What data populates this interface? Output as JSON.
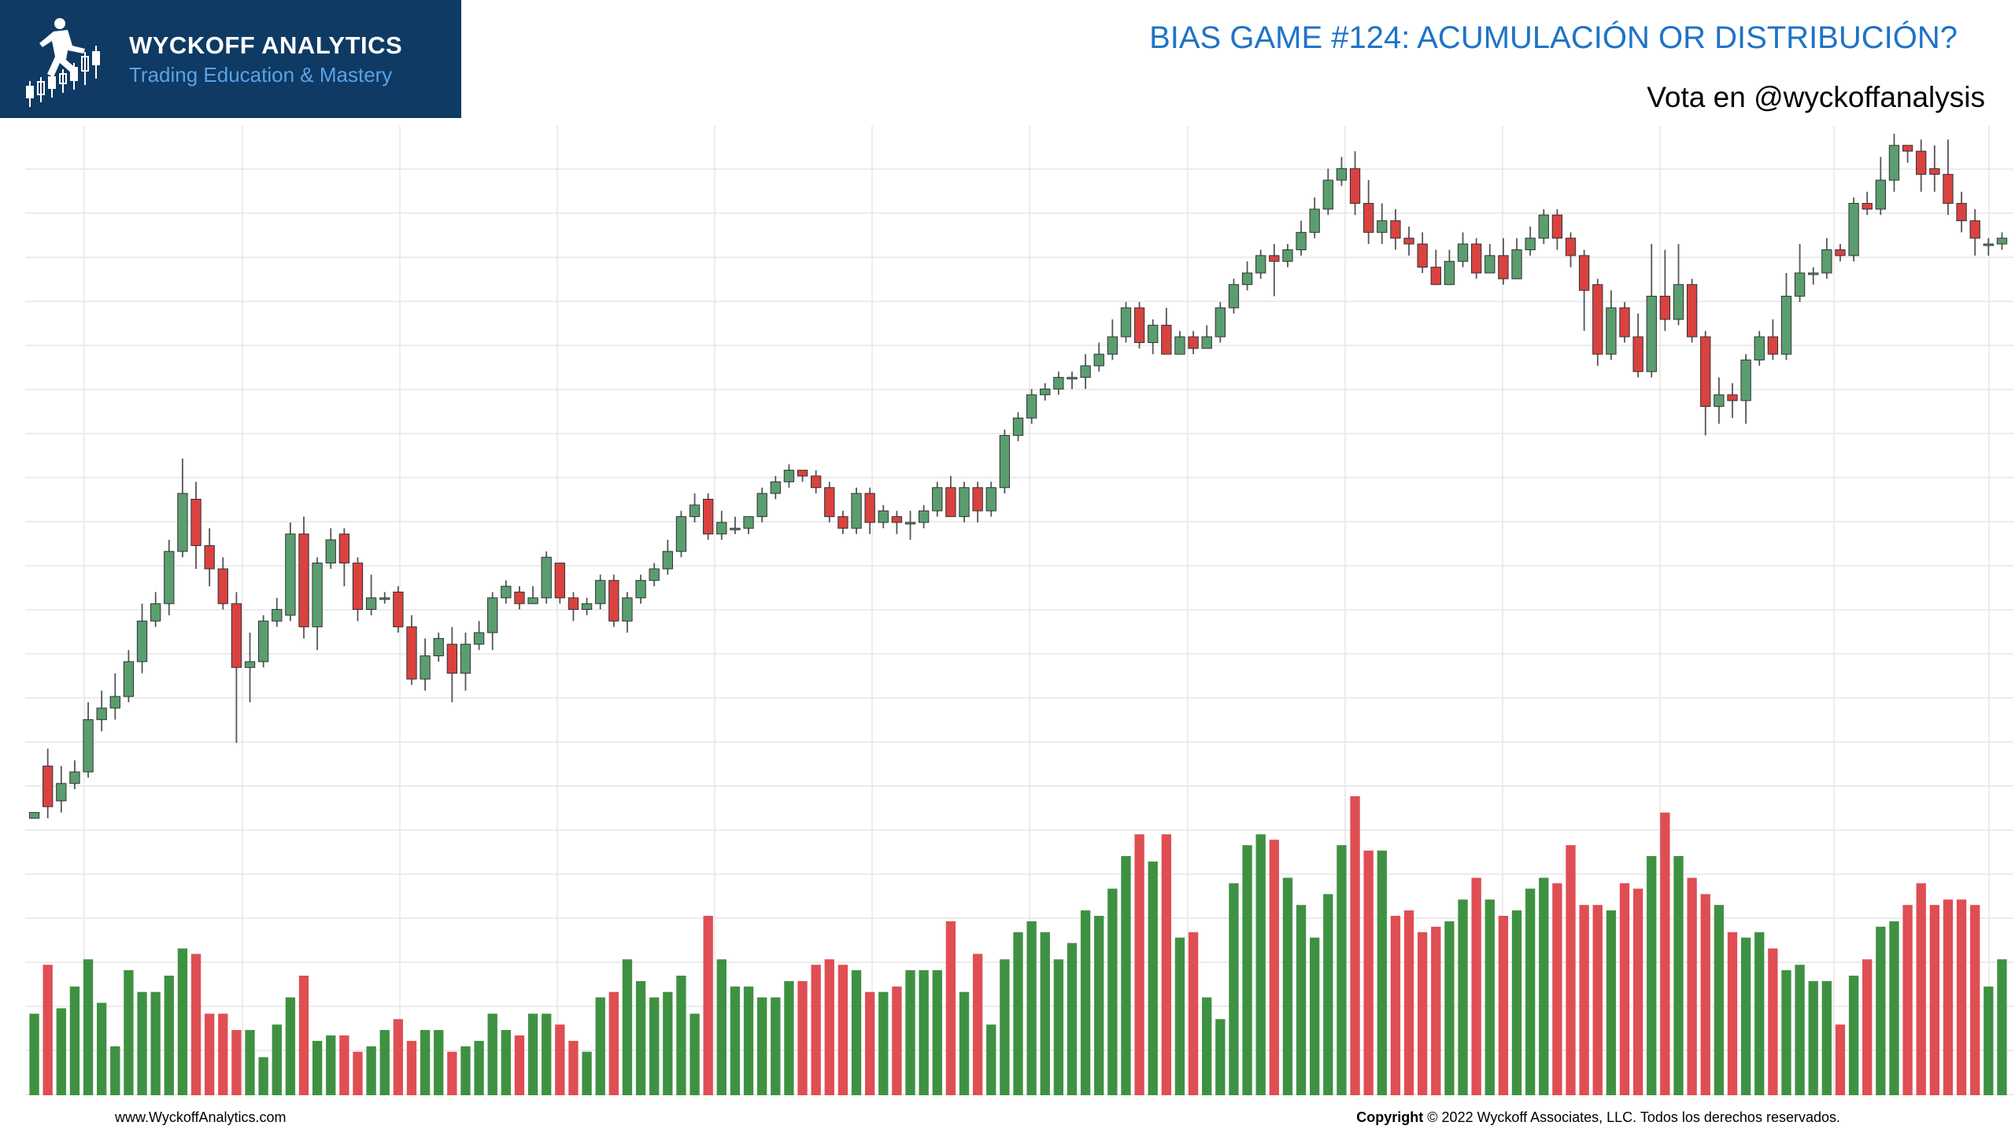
{
  "brand": {
    "name": "WYCKOFF ANALYTICS",
    "tagline": "Trading Education & Mastery"
  },
  "header": {
    "title": "BIAS GAME #124: ACUMULACIÓN OR DISTRIBUCIÓN?",
    "subtitle": "Vota en @wyckoffanalysis"
  },
  "footer": {
    "website": "www.WyckoffAnalytics.com",
    "copyright_label": "Copyright",
    "copyright_text": "© 2022 Wyckoff Associates, LLC. Todos los derechos reservados."
  },
  "colors": {
    "bull": "#5a9e6f",
    "bear": "#d9423f",
    "vol_bull": "#3f9142",
    "vol_bear": "#df4e53",
    "grid": "#e6e6e6",
    "brand_bg": "#0e3a63",
    "title": "#1f73c6"
  },
  "chart_data": {
    "type": "candlestick",
    "ylim": [
      0,
      100
    ],
    "volume_ylim": [
      0,
      100
    ],
    "grid": true,
    "bars": [
      [
        0,
        1,
        0,
        1,
        15
      ],
      [
        9,
        2,
        12,
        0,
        24
      ],
      [
        3,
        6,
        9,
        1,
        16
      ],
      [
        6,
        8,
        10,
        5,
        20
      ],
      [
        8,
        17,
        20,
        7,
        25
      ],
      [
        17,
        19,
        22,
        15,
        17
      ],
      [
        19,
        21,
        25,
        17,
        9
      ],
      [
        21,
        27,
        29,
        20,
        23
      ],
      [
        27,
        34,
        37,
        25,
        19
      ],
      [
        34,
        37,
        39,
        33,
        19
      ],
      [
        37,
        46,
        48,
        35,
        22
      ],
      [
        46,
        56,
        62,
        45,
        27
      ],
      [
        55,
        47,
        58,
        43,
        26
      ],
      [
        47,
        43,
        50,
        40,
        15
      ],
      [
        43,
        37,
        45,
        36,
        15
      ],
      [
        37,
        26,
        39,
        13,
        12
      ],
      [
        26,
        27,
        32,
        20,
        12
      ],
      [
        27,
        34,
        35,
        26,
        7
      ],
      [
        34,
        36,
        38,
        33,
        13
      ],
      [
        35,
        49,
        51,
        34,
        18
      ],
      [
        49,
        33,
        52,
        31,
        22
      ],
      [
        33,
        44,
        45,
        29,
        10
      ],
      [
        44,
        48,
        50,
        43,
        11
      ],
      [
        49,
        44,
        50,
        40,
        11
      ],
      [
        44,
        36,
        45,
        34,
        8
      ],
      [
        36,
        38,
        42,
        35,
        9
      ],
      [
        38,
        38,
        39,
        37,
        12
      ],
      [
        39,
        33,
        40,
        32,
        14
      ],
      [
        33,
        24,
        35,
        23,
        10
      ],
      [
        24,
        28,
        31,
        22,
        12
      ],
      [
        28,
        31,
        32,
        27,
        12
      ],
      [
        30,
        25,
        33,
        20,
        8
      ],
      [
        25,
        30,
        32,
        22,
        9
      ],
      [
        30,
        32,
        34,
        29,
        10
      ],
      [
        32,
        38,
        39,
        29,
        15
      ],
      [
        38,
        40,
        41,
        37,
        12
      ],
      [
        39,
        37,
        40,
        36,
        11
      ],
      [
        37,
        38,
        40,
        37,
        15
      ],
      [
        38,
        45,
        46,
        37,
        15
      ],
      [
        44,
        38,
        44,
        37,
        13
      ],
      [
        38,
        36,
        39,
        34,
        10
      ],
      [
        36,
        37,
        38,
        35,
        8
      ],
      [
        37,
        41,
        42,
        36,
        18
      ],
      [
        41,
        34,
        42,
        33,
        19
      ],
      [
        34,
        38,
        39,
        32,
        25
      ],
      [
        38,
        41,
        42,
        37,
        21
      ],
      [
        41,
        43,
        44,
        40,
        18
      ],
      [
        43,
        46,
        48,
        42,
        19
      ],
      [
        46,
        52,
        53,
        45,
        22
      ],
      [
        52,
        54,
        56,
        51,
        15
      ],
      [
        55,
        49,
        56,
        48,
        33
      ],
      [
        49,
        51,
        53,
        48,
        25
      ],
      [
        50,
        50,
        52,
        49,
        20
      ],
      [
        50,
        52,
        52,
        49,
        20
      ],
      [
        52,
        56,
        57,
        51,
        18
      ],
      [
        56,
        58,
        59,
        55,
        18
      ],
      [
        58,
        60,
        61,
        57,
        21
      ],
      [
        60,
        59,
        60,
        58,
        21
      ],
      [
        59,
        57,
        60,
        56,
        24
      ],
      [
        57,
        52,
        58,
        51,
        25
      ],
      [
        52,
        50,
        53,
        49,
        24
      ],
      [
        50,
        56,
        57,
        49,
        23
      ],
      [
        56,
        51,
        57,
        49,
        19
      ],
      [
        51,
        53,
        54,
        50,
        19
      ],
      [
        52,
        51,
        53,
        49,
        20
      ],
      [
        51,
        51,
        53,
        48,
        23
      ],
      [
        51,
        53,
        54,
        50,
        23
      ],
      [
        53,
        57,
        58,
        52,
        23
      ],
      [
        57,
        52,
        59,
        52,
        32
      ],
      [
        52,
        57,
        58,
        51,
        19
      ],
      [
        57,
        53,
        58,
        51,
        26
      ],
      [
        53,
        57,
        58,
        52,
        13
      ],
      [
        57,
        66,
        67,
        56,
        25
      ],
      [
        66,
        69,
        70,
        65,
        30
      ],
      [
        69,
        73,
        74,
        68,
        32
      ],
      [
        73,
        74,
        75,
        72,
        30
      ],
      [
        74,
        76,
        77,
        73,
        25
      ],
      [
        76,
        76,
        77,
        74,
        28
      ],
      [
        76,
        78,
        80,
        74,
        34
      ],
      [
        78,
        80,
        82,
        77,
        33
      ],
      [
        80,
        83,
        86,
        79,
        38
      ],
      [
        83,
        88,
        89,
        82,
        44
      ],
      [
        88,
        82,
        89,
        81,
        48
      ],
      [
        82,
        85,
        86,
        80,
        43
      ],
      [
        85,
        80,
        88,
        80,
        48
      ],
      [
        80,
        83,
        84,
        81,
        29
      ],
      [
        83,
        81,
        84,
        80,
        30
      ],
      [
        81,
        83,
        85,
        81,
        18
      ],
      [
        83,
        88,
        89,
        82,
        14
      ],
      [
        88,
        92,
        93,
        87,
        39
      ],
      [
        92,
        94,
        96,
        91,
        46
      ],
      [
        94,
        97,
        98,
        93,
        48
      ],
      [
        97,
        96,
        99,
        90,
        47
      ],
      [
        96,
        98,
        99,
        95,
        40
      ],
      [
        98,
        101,
        103,
        97,
        35
      ],
      [
        101,
        105,
        107,
        100,
        29
      ],
      [
        105,
        110,
        112,
        104,
        37
      ],
      [
        110,
        112,
        114,
        109,
        46
      ],
      [
        112,
        106,
        115,
        104,
        55
      ],
      [
        106,
        101,
        110,
        99,
        45
      ],
      [
        101,
        103,
        106,
        99,
        45
      ],
      [
        103,
        100,
        105,
        98,
        33
      ],
      [
        100,
        99,
        102,
        97,
        34
      ],
      [
        99,
        95,
        101,
        94,
        30
      ],
      [
        95,
        92,
        98,
        92,
        31
      ],
      [
        92,
        96,
        98,
        93,
        32
      ],
      [
        96,
        99,
        101,
        95,
        36
      ],
      [
        99,
        94,
        100,
        93,
        40
      ],
      [
        94,
        97,
        99,
        94,
        36
      ],
      [
        97,
        93,
        100,
        92,
        33
      ],
      [
        93,
        98,
        100,
        93,
        34
      ],
      [
        98,
        100,
        102,
        97,
        38
      ],
      [
        100,
        104,
        105,
        99,
        40
      ],
      [
        104,
        100,
        105,
        98,
        39
      ],
      [
        100,
        97,
        101,
        95,
        46
      ],
      [
        97,
        91,
        98,
        84,
        35
      ],
      [
        92,
        80,
        93,
        78,
        35
      ],
      [
        80,
        88,
        91,
        79,
        34
      ],
      [
        88,
        83,
        89,
        82,
        39
      ],
      [
        83,
        77,
        87,
        76,
        38
      ],
      [
        77,
        90,
        99,
        76,
        44
      ],
      [
        90,
        86,
        98,
        84,
        52
      ],
      [
        86,
        92,
        99,
        85,
        44
      ],
      [
        92,
        83,
        93,
        82,
        40
      ],
      [
        83,
        71,
        84,
        66,
        37
      ],
      [
        71,
        73,
        76,
        68,
        35
      ],
      [
        73,
        72,
        75,
        69,
        30
      ],
      [
        72,
        79,
        80,
        68,
        29
      ],
      [
        79,
        83,
        84,
        78,
        30
      ],
      [
        83,
        80,
        86,
        79,
        27
      ],
      [
        80,
        90,
        94,
        79,
        23
      ],
      [
        90,
        94,
        99,
        89,
        24
      ],
      [
        94,
        94,
        95,
        92,
        21
      ],
      [
        94,
        98,
        100,
        93,
        21
      ],
      [
        98,
        97,
        99,
        96,
        13
      ],
      [
        97,
        106,
        107,
        96,
        22
      ],
      [
        106,
        105,
        108,
        104,
        25
      ],
      [
        105,
        110,
        114,
        104,
        31
      ],
      [
        110,
        116,
        118,
        108,
        32
      ],
      [
        116,
        115,
        116,
        113,
        35
      ],
      [
        115,
        111,
        117,
        108,
        39
      ],
      [
        112,
        111,
        116,
        108,
        35
      ],
      [
        111,
        106,
        117,
        104,
        36
      ],
      [
        106,
        103,
        108,
        101,
        36
      ],
      [
        103,
        100,
        105,
        97,
        35
      ],
      [
        99,
        99,
        100,
        97,
        20
      ],
      [
        99,
        100,
        101,
        98,
        25
      ]
    ]
  }
}
